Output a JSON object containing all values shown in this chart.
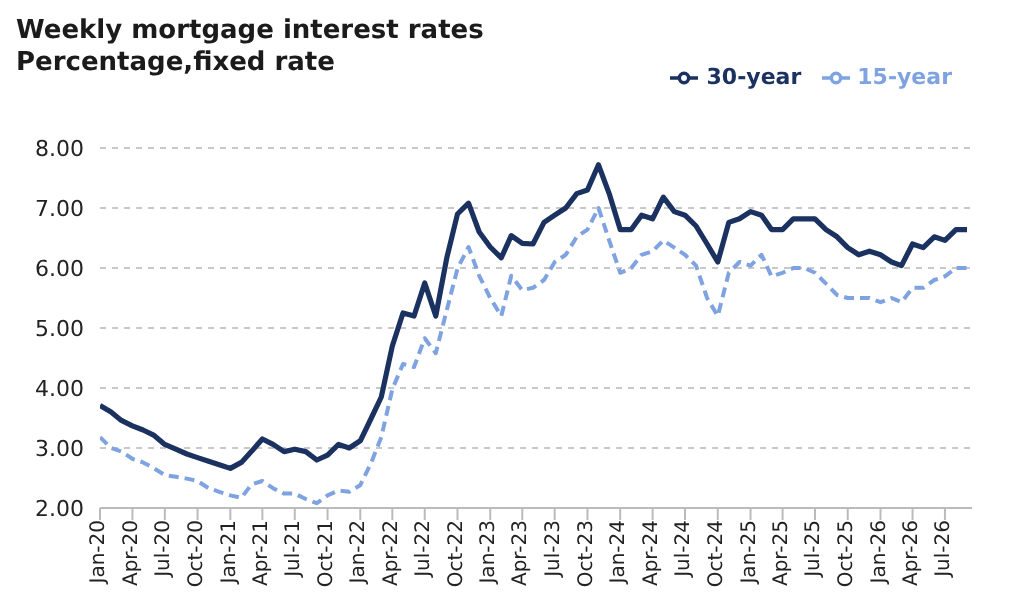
{
  "chart_data": {
    "type": "line",
    "title": "Weekly mortgage interest rates",
    "subtitle": "Percentage,fixed rate",
    "x": [
      "2020-01",
      "2020-02",
      "2020-03",
      "2020-04",
      "2020-05",
      "2020-06",
      "2020-07",
      "2020-08",
      "2020-09",
      "2020-10",
      "2020-11",
      "2020-12",
      "2021-01",
      "2021-02",
      "2021-03",
      "2021-04",
      "2021-05",
      "2021-06",
      "2021-07",
      "2021-08",
      "2021-09",
      "2021-10",
      "2021-11",
      "2021-12",
      "2022-01",
      "2022-02",
      "2022-03",
      "2022-04",
      "2022-05",
      "2022-06",
      "2022-07",
      "2022-08",
      "2022-09",
      "2022-10",
      "2022-11",
      "2022-12",
      "2023-01",
      "2023-02",
      "2023-03",
      "2023-04",
      "2023-05",
      "2023-06",
      "2023-07",
      "2023-08",
      "2023-09",
      "2023-10",
      "2023-11",
      "2023-12",
      "2024-01",
      "2024-02",
      "2024-03",
      "2024-04",
      "2024-05",
      "2024-06",
      "2024-07",
      "2024-08",
      "2024-09",
      "2024-10",
      "2024-11",
      "2024-12",
      "2025-01",
      "2025-02",
      "2025-03",
      "2025-04",
      "2025-05",
      "2025-06",
      "2025-07",
      "2025-08",
      "2025-09",
      "2025-10",
      "2025-11",
      "2025-12",
      "2026-01",
      "2026-02",
      "2026-03",
      "2026-04",
      "2026-05",
      "2026-06",
      "2026-07",
      "2026-08",
      "2026-09"
    ],
    "series": [
      {
        "name": "30-year",
        "color": "#1b3160",
        "line_style": "solid",
        "values": [
          3.71,
          3.6,
          3.46,
          3.37,
          3.3,
          3.21,
          3.06,
          2.98,
          2.9,
          2.84,
          2.78,
          2.72,
          2.66,
          2.76,
          2.94,
          3.15,
          3.06,
          2.94,
          2.98,
          2.94,
          2.8,
          2.88,
          3.06,
          3.0,
          3.12,
          3.5,
          3.85,
          4.7,
          5.25,
          5.2,
          5.75,
          5.2,
          6.17,
          6.9,
          7.08,
          6.6,
          6.35,
          6.17,
          6.54,
          6.41,
          6.4,
          6.76,
          6.88,
          7.0,
          7.24,
          7.3,
          7.72,
          7.24,
          6.64,
          6.64,
          6.88,
          6.82,
          7.18,
          6.94,
          6.88,
          6.7,
          6.4,
          6.1,
          6.76,
          6.82,
          6.94,
          6.88,
          6.64,
          6.64,
          6.82,
          6.82,
          6.82,
          6.64,
          6.52,
          6.34,
          6.22,
          6.28,
          6.22,
          6.1,
          6.04,
          6.4,
          6.34,
          6.52,
          6.46,
          6.64,
          6.64
        ]
      },
      {
        "name": "15-year",
        "color": "#7fa3e0",
        "line_style": "dashed",
        "values": [
          3.18,
          3.0,
          2.94,
          2.82,
          2.76,
          2.66,
          2.55,
          2.52,
          2.49,
          2.45,
          2.33,
          2.27,
          2.21,
          2.17,
          2.39,
          2.45,
          2.33,
          2.24,
          2.24,
          2.15,
          2.08,
          2.21,
          2.29,
          2.27,
          2.38,
          2.76,
          3.18,
          3.98,
          4.4,
          4.35,
          4.83,
          4.58,
          5.3,
          5.99,
          6.35,
          5.87,
          5.5,
          5.2,
          5.87,
          5.63,
          5.67,
          5.8,
          6.1,
          6.22,
          6.52,
          6.64,
          7.0,
          6.46,
          5.92,
          6.0,
          6.22,
          6.28,
          6.46,
          6.34,
          6.22,
          6.04,
          5.5,
          5.2,
          5.92,
          6.1,
          6.04,
          6.22,
          5.86,
          5.92,
          6.0,
          6.0,
          5.92,
          5.74,
          5.55,
          5.5,
          5.5,
          5.5,
          5.43,
          5.5,
          5.43,
          5.67,
          5.67,
          5.8,
          5.86,
          6.0,
          6.0
        ]
      }
    ],
    "ylim": [
      2,
      8
    ],
    "yticks": [
      {
        "value": 2,
        "label": "2.00"
      },
      {
        "value": 3,
        "label": "3.00"
      },
      {
        "value": 4,
        "label": "4.00"
      },
      {
        "value": 5,
        "label": "5.00"
      },
      {
        "value": 6,
        "label": "6.00"
      },
      {
        "value": 7,
        "label": "7.00"
      },
      {
        "value": 8,
        "label": "8.00"
      }
    ],
    "xlim": [
      "2020-01",
      "2026-09-15"
    ],
    "xticks": [
      {
        "value": "2020-01",
        "label": "Jan-20"
      },
      {
        "value": "2020-04",
        "label": "Apr-20"
      },
      {
        "value": "2020-07",
        "label": "Jul-20"
      },
      {
        "value": "2020-10",
        "label": "Oct-20"
      },
      {
        "value": "2021-01",
        "label": "Jan-21"
      },
      {
        "value": "2021-04",
        "label": "Apr-21"
      },
      {
        "value": "2021-07",
        "label": "Jul-21"
      },
      {
        "value": "2021-10",
        "label": "Oct-21"
      },
      {
        "value": "2022-01",
        "label": "Jan-22"
      },
      {
        "value": "2022-04",
        "label": "Apr-22"
      },
      {
        "value": "2022-07",
        "label": "Jul-22"
      },
      {
        "value": "2022-10",
        "label": "Oct-22"
      },
      {
        "value": "2023-01",
        "label": "Jan-23"
      },
      {
        "value": "2023-04",
        "label": "Apr-23"
      },
      {
        "value": "2023-07",
        "label": "Jul-23"
      },
      {
        "value": "2023-10",
        "label": "Oct-23"
      },
      {
        "value": "2024-01",
        "label": "Jan-24"
      },
      {
        "value": "2024-04",
        "label": "Apr-24"
      },
      {
        "value": "2024-07",
        "label": "Jul-24"
      },
      {
        "value": "2024-10",
        "label": "Oct-24"
      },
      {
        "value": "2025-01",
        "label": "Jan-25"
      },
      {
        "value": "2025-04",
        "label": "Apr-25"
      },
      {
        "value": "2025-07",
        "label": "Jul-25"
      },
      {
        "value": "2025-10",
        "label": "Oct-25"
      },
      {
        "value": "2026-01",
        "label": "Jan-26"
      },
      {
        "value": "2026-04",
        "label": "Apr-26"
      },
      {
        "value": "2026-07",
        "label": "Jul-26"
      }
    ],
    "grid": "y",
    "legend": "top right",
    "marker": "none"
  }
}
